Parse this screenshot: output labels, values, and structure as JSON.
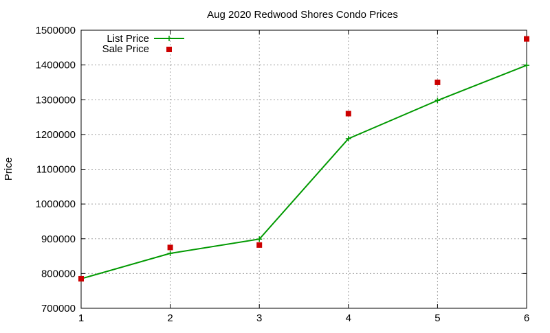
{
  "chart_data": {
    "type": "line",
    "title": "Aug 2020 Redwood Shores Condo Prices",
    "xlabel": "",
    "ylabel": "Price",
    "x": [
      1,
      2,
      3,
      4,
      5,
      6
    ],
    "xlim": [
      1,
      6
    ],
    "ylim": [
      700000,
      1500000
    ],
    "x_ticks": [
      "1",
      "2",
      "3",
      "4",
      "5",
      "6"
    ],
    "y_ticks": [
      "700000",
      "800000",
      "900000",
      "1000000",
      "1100000",
      "1200000",
      "1300000",
      "1400000",
      "1500000"
    ],
    "grid": true,
    "legend_position": "top-left",
    "series": [
      {
        "name": "List Price",
        "style": "line-with-plus-markers",
        "color": "#009900",
        "values": [
          785000,
          858000,
          899000,
          1188000,
          1298000,
          1399000
        ]
      },
      {
        "name": "Sale Price",
        "style": "square-markers",
        "color": "#cc0000",
        "values": [
          785000,
          875000,
          882000,
          1260000,
          1350000,
          1475000
        ]
      }
    ]
  }
}
